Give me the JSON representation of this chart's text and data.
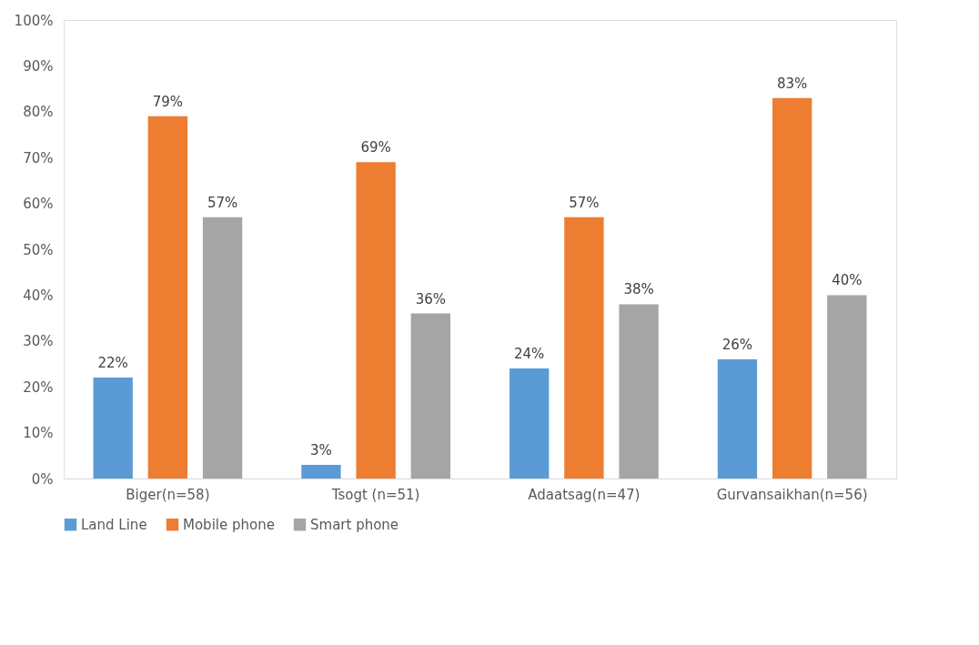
{
  "chart_data": {
    "type": "bar",
    "categories": [
      "Biger(n=58)",
      "Tsogt (n=51)",
      "Adaatsag(n=47)",
      "Gurvansaikhan(n=56)"
    ],
    "series": [
      {
        "name": "Land Line",
        "color": "#5b9bd5",
        "values": [
          22,
          3,
          24,
          26
        ],
        "value_labels": [
          "22%",
          "3%",
          "24%",
          "26%"
        ]
      },
      {
        "name": "Mobile phone",
        "color": "#ed7d31",
        "values": [
          79,
          69,
          57,
          83
        ],
        "value_labels": [
          "79%",
          "69%",
          "57%",
          "83%"
        ]
      },
      {
        "name": "Smart phone",
        "color": "#a5a5a5",
        "values": [
          57,
          36,
          38,
          40
        ],
        "value_labels": [
          "57%",
          "36%",
          "38%",
          "40%"
        ]
      }
    ],
    "ylim": [
      0,
      100
    ],
    "yticks": [
      {
        "value": 0,
        "label": "0%"
      },
      {
        "value": 10,
        "label": "10%"
      },
      {
        "value": 20,
        "label": "20%"
      },
      {
        "value": 30,
        "label": "30%"
      },
      {
        "value": 40,
        "label": "40%"
      },
      {
        "value": 50,
        "label": "50%"
      },
      {
        "value": 60,
        "label": "60%"
      },
      {
        "value": 70,
        "label": "70%"
      },
      {
        "value": 80,
        "label": "80%"
      },
      {
        "value": 90,
        "label": "90%"
      },
      {
        "value": 100,
        "label": "100%"
      }
    ],
    "grid": false,
    "legend": "bottom"
  }
}
